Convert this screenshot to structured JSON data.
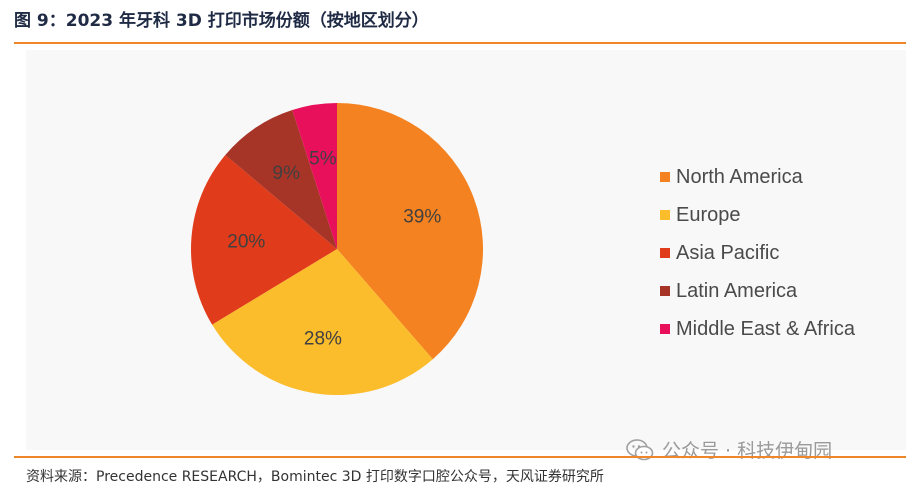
{
  "title": "图 9：2023 年牙科 3D 打印市场份额（按地区划分）",
  "source": "资料来源：Precedence RESEARCH，Bomintec 3D 打印数字口腔公众号，天风证券研究所",
  "watermark": "公众号 · 科技伊甸园",
  "chart_data": {
    "type": "pie",
    "title": "",
    "legend_position": "right",
    "categories": [
      "North America",
      "Europe",
      "Asia Pacific",
      "Latin America",
      "Middle East & Africa"
    ],
    "values": [
      39,
      28,
      20,
      9,
      5
    ],
    "labels": [
      "39%",
      "28%",
      "20%",
      "9%",
      "5%"
    ],
    "colors": [
      "#f58220",
      "#fbbd2c",
      "#e03b1a",
      "#a63427",
      "#e8105a"
    ]
  }
}
